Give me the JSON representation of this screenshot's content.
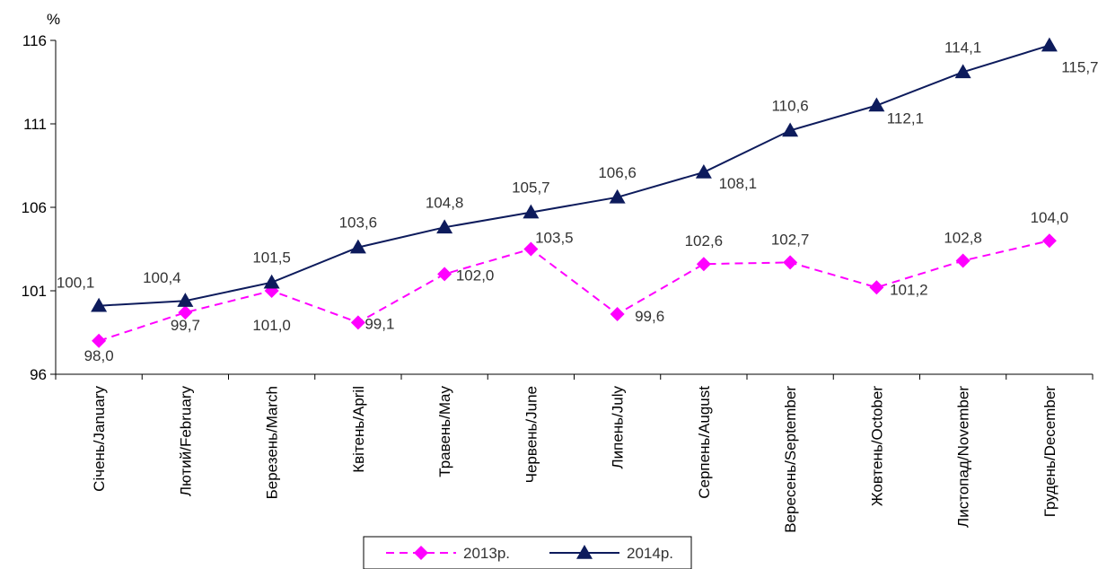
{
  "chart_data": {
    "type": "line",
    "title": "",
    "xlabel": "",
    "ylabel": "%",
    "ylim": [
      96,
      116
    ],
    "yticks": [
      96,
      101,
      106,
      111,
      116
    ],
    "grid": false,
    "legend_position": "bottom",
    "categories": [
      "Січень/January",
      "Лютий/February",
      "Березень/March",
      "Квітень/April",
      "Травень/May",
      "Червень/June",
      "Липень/July",
      "Серпень/August",
      "Вересень/September",
      "Жовтень/October",
      "Листопад/November",
      "Грудень/December"
    ],
    "series": [
      {
        "name": "2013р.",
        "color": "#FF00FF",
        "marker": "diamond",
        "line_style": "dashed",
        "values": [
          98.0,
          99.7,
          101.0,
          99.1,
          102.0,
          103.5,
          99.6,
          102.6,
          102.7,
          101.2,
          102.8,
          104.0
        ],
        "labels": [
          "98,0",
          "99,7",
          "101,0",
          "99,1",
          "102,0",
          "103,5",
          "99,6",
          "102,6",
          "102,7",
          "101,2",
          "102,8",
          "104,0"
        ]
      },
      {
        "name": "2014р.",
        "color": "#0D1B5C",
        "marker": "triangle",
        "line_style": "solid",
        "values": [
          100.1,
          100.4,
          101.5,
          103.6,
          104.8,
          105.7,
          106.6,
          108.1,
          110.6,
          112.1,
          114.1,
          115.7
        ],
        "labels": [
          "100,1",
          "100,4",
          "101,5",
          "103,6",
          "104,8",
          "105,7",
          "106,6",
          "108,1",
          "110,6",
          "112,1",
          "114,1",
          "115,7"
        ]
      }
    ]
  }
}
